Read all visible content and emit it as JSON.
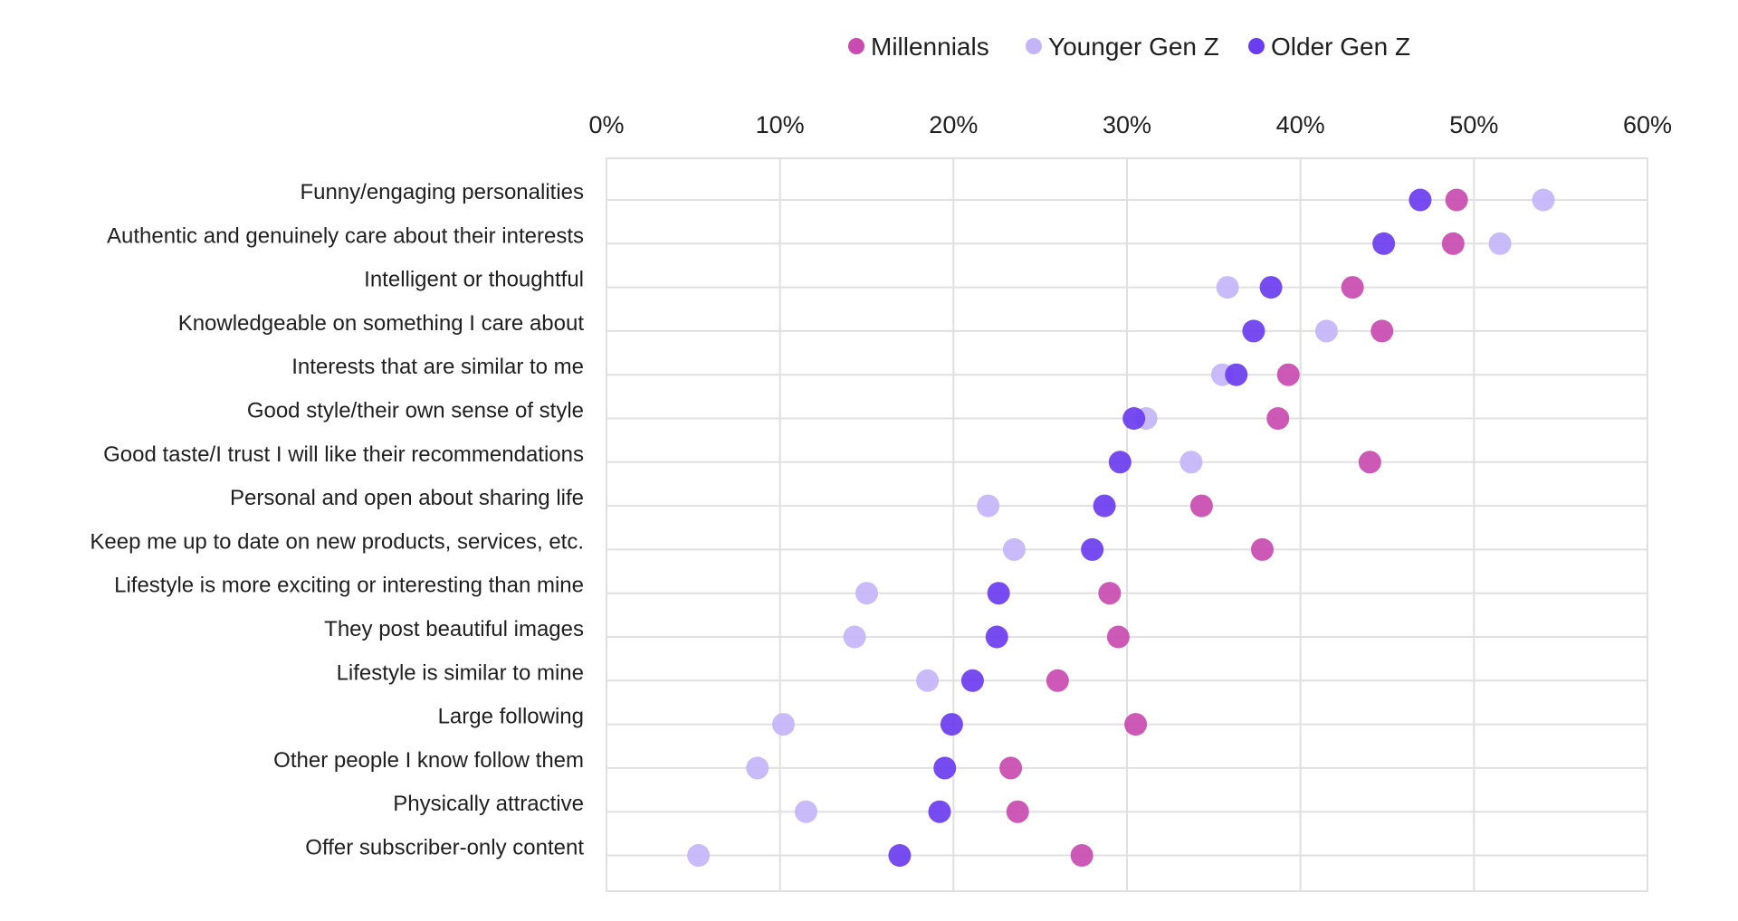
{
  "chart_data": {
    "type": "scatter",
    "title": "",
    "xlabel": "",
    "ylabel": "",
    "xlim": [
      0,
      60
    ],
    "x_ticks": [
      0,
      10,
      20,
      30,
      40,
      50,
      60
    ],
    "x_tick_labels": [
      "0%",
      "10%",
      "20%",
      "30%",
      "40%",
      "50%",
      "60%"
    ],
    "x_axis_position": "top",
    "grid": true,
    "legend_position": "top",
    "categories": [
      "Funny/engaging personalities",
      "Authentic and genuinely care about their interests",
      "Intelligent or thoughtful",
      "Knowledgeable on something I care about",
      "Interests that are similar to me",
      "Good style/their own sense of style",
      "Good taste/I trust I will like their recommendations",
      "Personal and open about sharing life",
      "Keep me up to date on new products, services, etc.",
      "Lifestyle is more exciting or interesting than mine",
      "They post beautiful images",
      "Lifestyle is similar to mine",
      "Large following",
      "Other people I know follow them",
      "Physically attractive",
      "Offer subscriber-only content"
    ],
    "series": [
      {
        "name": "Millennials",
        "color": "#c94bb0",
        "values": [
          49,
          48.8,
          43,
          44.7,
          39.3,
          38.7,
          44,
          34.3,
          37.8,
          29,
          29.5,
          26,
          30.5,
          23.3,
          23.7,
          27.4
        ]
      },
      {
        "name": "Younger Gen Z",
        "color": "#c4b5f8",
        "values": [
          54,
          51.5,
          35.8,
          41.5,
          35.5,
          31.1,
          33.7,
          22,
          23.5,
          15,
          14.3,
          18.5,
          10.2,
          8.7,
          11.5,
          5.3
        ]
      },
      {
        "name": "Older Gen Z",
        "color": "#6a3df0",
        "values": [
          46.9,
          44.8,
          38.3,
          37.3,
          36.3,
          30.4,
          29.6,
          28.7,
          28,
          22.6,
          22.5,
          21.1,
          19.9,
          19.5,
          19.2,
          16.9
        ]
      }
    ]
  }
}
